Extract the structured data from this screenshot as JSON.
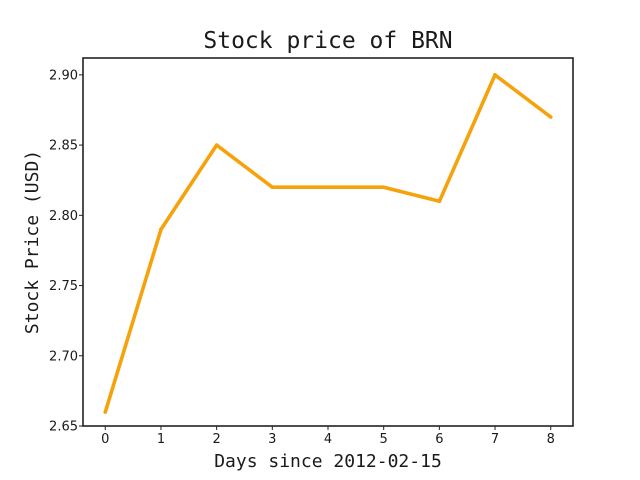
{
  "chart_data": {
    "type": "line",
    "title": "Stock price of BRN",
    "xlabel": "Days since 2012-02-15",
    "ylabel": "Stock Price (USD)",
    "x": [
      0,
      1,
      2,
      3,
      4,
      5,
      6,
      7,
      8
    ],
    "series": [
      {
        "values": [
          2.66,
          2.79,
          2.85,
          2.82,
          2.82,
          2.82,
          2.81,
          2.9,
          2.87
        ],
        "color": "#f5a20c"
      }
    ],
    "xticks": [
      "0",
      "1",
      "2",
      "3",
      "4",
      "5",
      "6",
      "7",
      "8"
    ],
    "yticks": [
      "2.65",
      "2.70",
      "2.75",
      "2.80",
      "2.85",
      "2.90"
    ],
    "xlim": [
      -0.4,
      8.4
    ],
    "ylim": [
      2.65,
      2.912
    ],
    "grid": false,
    "legend": "none"
  }
}
